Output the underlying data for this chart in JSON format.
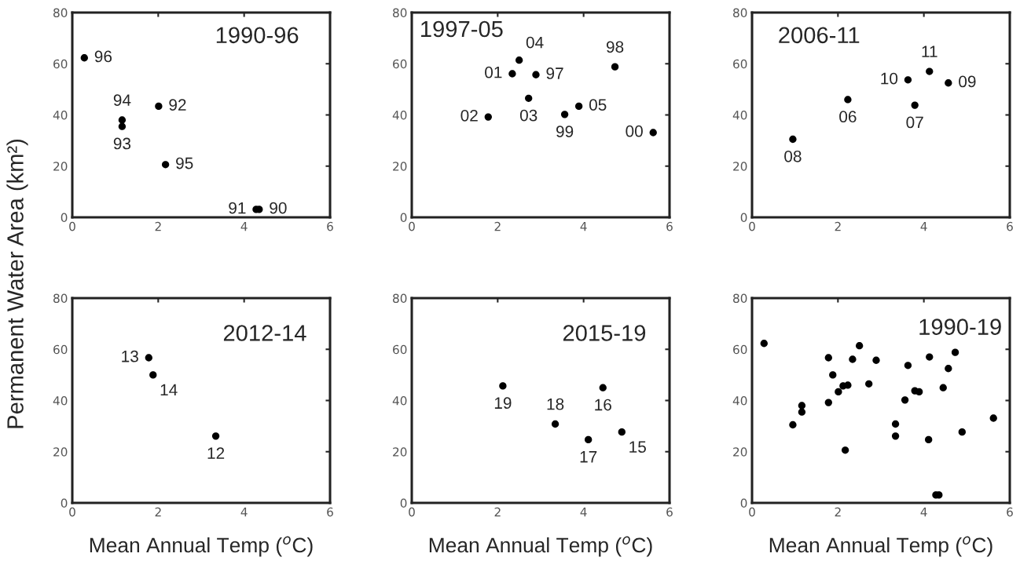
{
  "chart_data": [
    {
      "type": "scatter",
      "title": "1990-96",
      "ylabel": "Permanent Water Area (km²)",
      "color": "#000000",
      "marker": "circle",
      "x": [
        0.28,
        1.16,
        1.16,
        2.01,
        2.17,
        4.28,
        4.35
      ],
      "values": [
        62.3,
        38.0,
        35.5,
        43.4,
        20.6,
        3.1,
        3.1
      ],
      "annotations": [
        {
          "text": "96",
          "x": 0.28,
          "y": 62.3
        },
        {
          "text": "94",
          "x": 1.16,
          "y": 38.0
        },
        {
          "text": "93",
          "x": 1.16,
          "y": 35.5
        },
        {
          "text": "92",
          "x": 2.01,
          "y": 43.4
        },
        {
          "text": "95",
          "x": 2.17,
          "y": 20.6
        },
        {
          "text": "91",
          "x": 4.28,
          "y": 3.1
        },
        {
          "text": "90",
          "x": 4.35,
          "y": 3.1
        }
      ],
      "xlim": [
        0,
        6
      ],
      "xticks": [
        0,
        2,
        4,
        6
      ],
      "ylim": [
        0,
        80
      ],
      "yticks": [
        0,
        20,
        40,
        60,
        80
      ]
    },
    {
      "type": "scatter",
      "title": "1997-05",
      "color": "#000000",
      "marker": "circle",
      "x": [
        2.5,
        2.34,
        2.89,
        2.72,
        1.78,
        3.56,
        3.89,
        4.73,
        5.62
      ],
      "values": [
        61.4,
        56.1,
        55.7,
        46.5,
        39.2,
        40.2,
        43.4,
        58.8,
        33.1
      ],
      "annotations": [
        {
          "text": "04",
          "x": 2.5,
          "y": 61.4
        },
        {
          "text": "01",
          "x": 2.34,
          "y": 56.1
        },
        {
          "text": "97",
          "x": 2.89,
          "y": 55.7
        },
        {
          "text": "03",
          "x": 2.72,
          "y": 46.5
        },
        {
          "text": "02",
          "x": 1.78,
          "y": 39.2
        },
        {
          "text": "99",
          "x": 3.56,
          "y": 40.2
        },
        {
          "text": "05",
          "x": 3.89,
          "y": 43.4
        },
        {
          "text": "98",
          "x": 4.73,
          "y": 58.8
        },
        {
          "text": "00",
          "x": 5.62,
          "y": 33.1
        }
      ],
      "xlim": [
        0,
        6
      ],
      "xticks": [
        0,
        2,
        4,
        6
      ],
      "ylim": [
        0,
        80
      ],
      "yticks": [
        0,
        20,
        40,
        60,
        80
      ]
    },
    {
      "type": "scatter",
      "title": "2006-11",
      "color": "#000000",
      "marker": "circle",
      "x": [
        0.95,
        2.23,
        3.63,
        3.79,
        4.13,
        4.57
      ],
      "values": [
        30.5,
        46.0,
        53.7,
        43.8,
        57.0,
        52.5
      ],
      "annotations": [
        {
          "text": "08",
          "x": 0.95,
          "y": 30.5
        },
        {
          "text": "06",
          "x": 2.23,
          "y": 46.0
        },
        {
          "text": "10",
          "x": 3.63,
          "y": 53.7
        },
        {
          "text": "07",
          "x": 3.79,
          "y": 43.8
        },
        {
          "text": "11",
          "x": 4.13,
          "y": 57.0
        },
        {
          "text": "09",
          "x": 4.57,
          "y": 52.5
        }
      ],
      "xlim": [
        0,
        6
      ],
      "xticks": [
        0,
        2,
        4,
        6
      ],
      "ylim": [
        0,
        80
      ],
      "yticks": [
        0,
        20,
        40,
        60,
        80
      ]
    },
    {
      "type": "scatter",
      "title": "2012-14",
      "xlabel": "Mean Annual Temp ($^{o}$C)",
      "color": "#000000",
      "marker": "circle",
      "x": [
        1.78,
        1.88,
        3.34
      ],
      "values": [
        56.7,
        50.0,
        26.1
      ],
      "annotations": [
        {
          "text": "13",
          "x": 1.78,
          "y": 56.7
        },
        {
          "text": "14",
          "x": 1.88,
          "y": 50.0
        },
        {
          "text": "12",
          "x": 3.34,
          "y": 26.1
        }
      ],
      "xlim": [
        0,
        6
      ],
      "xticks": [
        0,
        2,
        4,
        6
      ],
      "ylim": [
        0,
        80
      ],
      "yticks": [
        0,
        20,
        40,
        60,
        80
      ]
    },
    {
      "type": "scatter",
      "title": "2015-19",
      "xlabel": "Mean Annual Temp ($^{o}$C)",
      "color": "#000000",
      "marker": "circle",
      "x": [
        2.12,
        3.34,
        4.45,
        4.11,
        4.89
      ],
      "values": [
        45.7,
        30.8,
        45.0,
        24.7,
        27.7
      ],
      "annotations": [
        {
          "text": "19",
          "x": 2.12,
          "y": 45.7
        },
        {
          "text": "18",
          "x": 3.34,
          "y": 30.8
        },
        {
          "text": "16",
          "x": 4.45,
          "y": 45.0
        },
        {
          "text": "17",
          "x": 4.11,
          "y": 24.7
        },
        {
          "text": "15",
          "x": 4.89,
          "y": 27.7
        }
      ],
      "xlim": [
        0,
        6
      ],
      "xticks": [
        0,
        2,
        4,
        6
      ],
      "ylim": [
        0,
        80
      ],
      "yticks": [
        0,
        20,
        40,
        60,
        80
      ]
    },
    {
      "type": "scatter",
      "title": "1990-19",
      "xlabel": "Mean Annual Temp ($^{o}$C)",
      "color": "#000000",
      "marker": "circle",
      "x": [
        0.28,
        1.16,
        1.16,
        2.01,
        2.17,
        4.28,
        4.35,
        2.5,
        2.34,
        2.89,
        2.72,
        1.78,
        3.56,
        3.89,
        4.73,
        5.62,
        0.95,
        2.23,
        3.63,
        3.79,
        4.13,
        4.57,
        1.78,
        1.88,
        3.34,
        2.12,
        3.34,
        4.45,
        4.11,
        4.89
      ],
      "values": [
        62.3,
        38.0,
        35.5,
        43.4,
        20.6,
        3.1,
        3.1,
        61.4,
        56.1,
        55.7,
        46.5,
        39.2,
        40.2,
        43.4,
        58.8,
        33.1,
        30.5,
        46.0,
        53.7,
        43.8,
        57.0,
        52.5,
        56.7,
        50.0,
        26.1,
        45.7,
        30.8,
        45.0,
        24.7,
        27.7
      ],
      "xlim": [
        0,
        6
      ],
      "xticks": [
        0,
        2,
        4,
        6
      ],
      "ylim": [
        0,
        80
      ],
      "yticks": [
        0,
        20,
        40,
        60,
        80
      ]
    }
  ]
}
